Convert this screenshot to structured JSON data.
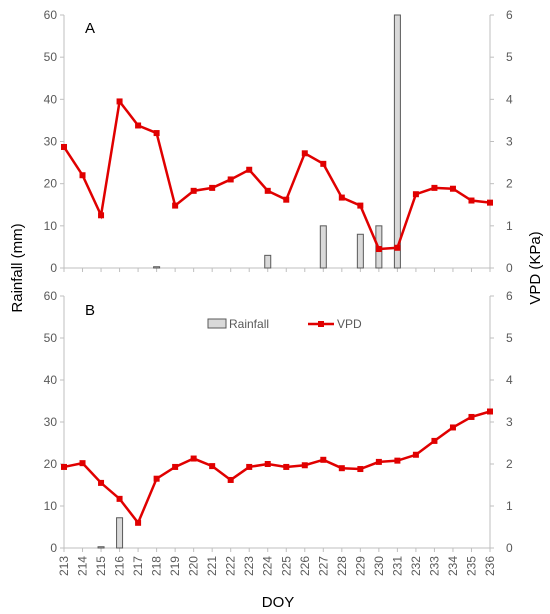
{
  "chart_data": [
    {
      "panel": "A",
      "type": "bar+line",
      "x": [
        213,
        214,
        215,
        216,
        217,
        218,
        219,
        220,
        221,
        222,
        223,
        224,
        225,
        226,
        227,
        228,
        229,
        230,
        231,
        232,
        233,
        234,
        235,
        236
      ],
      "rainfall": [
        0,
        0,
        0,
        0,
        0,
        0.3,
        0,
        0,
        0,
        0,
        0,
        3,
        0,
        0,
        10,
        0,
        8,
        10,
        60,
        0,
        0,
        0,
        0,
        0
      ],
      "vpd": [
        2.87,
        2.2,
        1.25,
        3.95,
        3.38,
        3.2,
        1.48,
        1.83,
        1.9,
        2.1,
        2.33,
        1.83,
        1.62,
        2.72,
        2.47,
        1.67,
        1.48,
        0.45,
        0.48,
        1.75,
        1.9,
        1.88,
        1.6,
        1.55
      ],
      "ylim_left": [
        0,
        60
      ],
      "ylim_right": [
        0,
        6
      ],
      "yticks_left": [
        "0",
        "10",
        "20",
        "30",
        "40",
        "50",
        "60"
      ],
      "yticks_right": [
        "0",
        "1",
        "2",
        "3",
        "4",
        "5",
        "6"
      ]
    },
    {
      "panel": "B",
      "type": "bar+line",
      "x": [
        213,
        214,
        215,
        216,
        217,
        218,
        219,
        220,
        221,
        222,
        223,
        224,
        225,
        226,
        227,
        228,
        229,
        230,
        231,
        232,
        233,
        234,
        235,
        236
      ],
      "rainfall": [
        0,
        0,
        0.3,
        7.2,
        0,
        0,
        0,
        0,
        0,
        0,
        0,
        0,
        0,
        0,
        0,
        0,
        0,
        0,
        0,
        0,
        0,
        0,
        0,
        0
      ],
      "vpd": [
        1.93,
        2.02,
        1.55,
        1.17,
        0.6,
        1.65,
        1.93,
        2.13,
        1.95,
        1.62,
        1.93,
        2.0,
        1.93,
        1.97,
        2.1,
        1.9,
        1.88,
        2.05,
        2.08,
        2.22,
        2.55,
        2.87,
        3.12,
        3.25
      ],
      "ylim_left": [
        0,
        60
      ],
      "ylim_right": [
        0,
        6
      ],
      "yticks_left": [
        "0",
        "10",
        "20",
        "30",
        "40",
        "50",
        "60"
      ],
      "yticks_right": [
        "0",
        "1",
        "2",
        "3",
        "4",
        "5",
        "6"
      ]
    }
  ],
  "labels": {
    "ylabel_left": "Rainfall (mm)",
    "ylabel_right": "VPD (KPa)",
    "xlabel": "DOY",
    "panel_a": "A",
    "panel_b": "B"
  },
  "legend": {
    "rainfall": "Rainfall",
    "vpd": "VPD",
    "placement": "top-center of panel B"
  },
  "colors": {
    "bar_fill": "#d9d9d9",
    "bar_stroke": "#595959",
    "line": "#e00000",
    "axis": "#bfbfbf"
  }
}
